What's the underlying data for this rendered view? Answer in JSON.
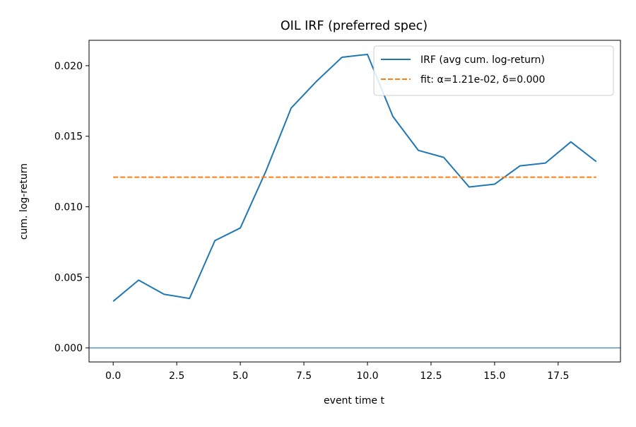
{
  "chart_data": {
    "type": "line",
    "title": "OIL IRF (preferred spec)",
    "xlabel": "event time t",
    "ylabel": "cum. log-return",
    "xlim": [
      -0.95,
      19.95
    ],
    "ylim": [
      -0.001,
      0.0218
    ],
    "xticks": [
      0.0,
      2.5,
      5.0,
      7.5,
      10.0,
      12.5,
      15.0,
      17.5
    ],
    "xtick_labels": [
      "0.0",
      "2.5",
      "5.0",
      "7.5",
      "10.0",
      "12.5",
      "15.0",
      "17.5"
    ],
    "yticks": [
      0.0,
      0.005,
      0.01,
      0.015,
      0.02
    ],
    "ytick_labels": [
      "0.000",
      "0.005",
      "0.010",
      "0.015",
      "0.020"
    ],
    "grid": false,
    "legend_position": "top-right",
    "series": [
      {
        "name": "IRF (avg cum. log-return)",
        "color": "#1f77b4",
        "style": "solid",
        "x": [
          0,
          1,
          2,
          3,
          4,
          5,
          6,
          7,
          8,
          9,
          10,
          11,
          12,
          13,
          14,
          15,
          16,
          17,
          18,
          19
        ],
        "values": [
          0.0033,
          0.0048,
          0.0038,
          0.0035,
          0.0076,
          0.0085,
          0.0125,
          0.017,
          0.0189,
          0.0206,
          0.0208,
          0.0164,
          0.014,
          0.0135,
          0.0114,
          0.0116,
          0.0129,
          0.0131,
          0.0146,
          0.0132
        ]
      },
      {
        "name": "fit: α=1.21e-02, δ=0.000",
        "color": "#ff7f0e",
        "style": "dashed",
        "x": [
          0,
          19
        ],
        "values": [
          0.0121,
          0.0121
        ]
      }
    ],
    "hline": {
      "y": 0.0,
      "color": "#1f77b4"
    }
  }
}
